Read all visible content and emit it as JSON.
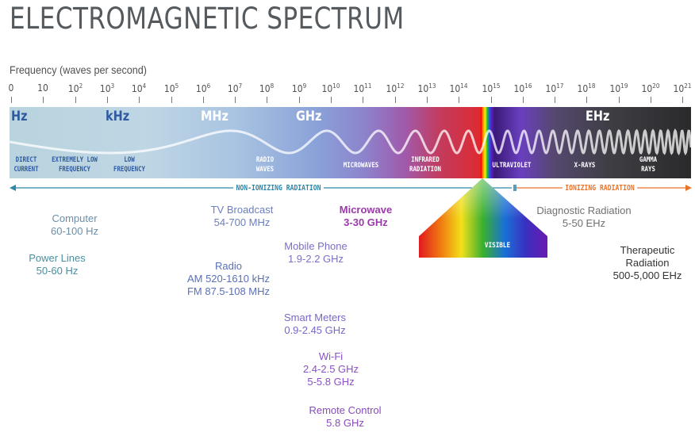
{
  "title": "ELECTROMAGNETIC SPECTRUM",
  "axis": {
    "label": "Frequency (waves per second)",
    "ticks": [
      {
        "base": "0",
        "exp": ""
      },
      {
        "base": "10",
        "exp": ""
      },
      {
        "base": "10",
        "exp": "2"
      },
      {
        "base": "10",
        "exp": "3"
      },
      {
        "base": "10",
        "exp": "4"
      },
      {
        "base": "10",
        "exp": "5"
      },
      {
        "base": "10",
        "exp": "6"
      },
      {
        "base": "10",
        "exp": "7"
      },
      {
        "base": "10",
        "exp": "8"
      },
      {
        "base": "10",
        "exp": "9"
      },
      {
        "base": "10",
        "exp": "10"
      },
      {
        "base": "10",
        "exp": "11"
      },
      {
        "base": "10",
        "exp": "12"
      },
      {
        "base": "10",
        "exp": "13"
      },
      {
        "base": "10",
        "exp": "14"
      },
      {
        "base": "10",
        "exp": "15"
      },
      {
        "base": "10",
        "exp": "16"
      },
      {
        "base": "10",
        "exp": "17"
      },
      {
        "base": "10",
        "exp": "18"
      },
      {
        "base": "10",
        "exp": "19"
      },
      {
        "base": "10",
        "exp": "20"
      },
      {
        "base": "10",
        "exp": "21"
      }
    ]
  },
  "units": {
    "hz": "Hz",
    "khz": "kHz",
    "mhz": "MHz",
    "ghz": "GHz",
    "ehz": "EHz"
  },
  "regions": {
    "direct_current": {
      "line1": "DIRECT",
      "line2": "CURRENT"
    },
    "elf": {
      "line1": "EXTREMELY LOW",
      "line2": "FREQUENCY"
    },
    "lf": {
      "line1": "LOW",
      "line2": "FREQUENCY"
    },
    "radio": {
      "line1": "RADIO",
      "line2": "WAVES"
    },
    "microwaves": {
      "line1": "MICROWAVES"
    },
    "infrared": {
      "line1": "INFRARED",
      "line2": "RADIATION"
    },
    "ultraviolet": {
      "line1": "ULTRAVIOLET"
    },
    "xrays": {
      "line1": "X-RAYS"
    },
    "gamma": {
      "line1": "GAMMA",
      "line2": "RAYS"
    },
    "visible": "VISIBLE"
  },
  "radiation": {
    "non_ionizing": "NON-IONIZING RADIATION",
    "ionizing": "IONIZING RADIATION"
  },
  "colors": {
    "non_ionizing_text": "#2e86a8",
    "ionizing_text": "#e8742a",
    "unit_blue": "#2f5aa0",
    "unit_white": "#ffffff",
    "example_teal": "#4a8fa0",
    "example_slate": "#6b7fa8",
    "example_blue": "#5a6fc0",
    "example_indigo": "#7060c8",
    "example_violet": "#8a50c8",
    "example_purple": "#9a3aa8",
    "example_grey": "#707070",
    "example_dark": "#333333"
  },
  "examples": {
    "computer": {
      "name": "Computer",
      "range": "60-100 Hz"
    },
    "power_lines": {
      "name": "Power Lines",
      "range": "50-60 Hz"
    },
    "tv": {
      "name": "TV Broadcast",
      "range": "54-700 MHz"
    },
    "radio": {
      "name": "Radio",
      "range": "AM 520-1610 kHz",
      "range2": "FM 87.5-108 MHz"
    },
    "mobile": {
      "name": "Mobile Phone",
      "range": "1.9-2.2 GHz"
    },
    "microwave": {
      "name": "Microwave",
      "range": "3-30 GHz"
    },
    "smart_meters": {
      "name": "Smart Meters",
      "range": "0.9-2.45 GHz"
    },
    "wifi": {
      "name": "Wi-Fi",
      "range": "2.4-2.5 GHz",
      "range2": "5-5.8 GHz"
    },
    "remote": {
      "name": "Remote Control",
      "range": "5.8 GHz"
    },
    "diagnostic": {
      "name": "Diagnostic Radiation",
      "range": "5-50 EHz"
    },
    "therapeutic": {
      "name": "Therapeutic",
      "name2": "Radiation",
      "range": "500-5,000 EHz"
    }
  }
}
